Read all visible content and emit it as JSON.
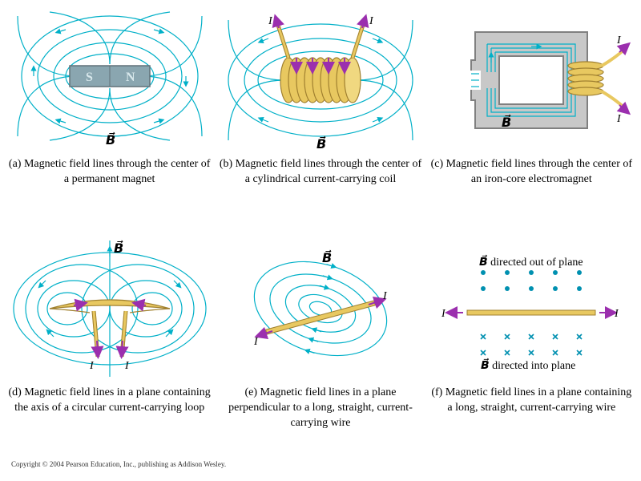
{
  "colors": {
    "field_line": "#00b0c8",
    "field_arrow": "#00b0c8",
    "current_arrow": "#9b2fae",
    "wire_fill": "#e8c860",
    "wire_stroke": "#a08030",
    "magnet_fill": "#8aa6b0",
    "magnet_face": "#b0c8d0",
    "iron_fill": "#c8c8c8",
    "iron_stroke": "#808080",
    "dot_cross": "#0090b0",
    "text": "#000000"
  },
  "fonts": {
    "caption_size": 14,
    "label_size": 14,
    "copyright_size": 9
  },
  "stroke": {
    "field_line_width": 1.2,
    "wire_stroke_width": 1.2,
    "current_arrow_width": 2
  },
  "labels": {
    "B": "B",
    "I": "I",
    "B_out": "directed out of plane",
    "B_in": "directed into plane",
    "S": "S",
    "N": "N"
  },
  "captions": {
    "a": "(a) Magnetic field lines through the center of a permanent magnet",
    "b": "(b) Magnetic field lines through the center of a cylindrical current-carrying coil",
    "c": "(c) Magnetic field lines through the center of an iron-core electromagnet",
    "d": "(d) Magnetic field lines in a plane containing the axis of a circular current-carrying loop",
    "e": "(e) Magnetic field lines in a plane perpendicular to a long, straight, current-carrying wire",
    "f": "(f) Magnetic field lines in a plane containing a long, straight, current-carrying wire"
  },
  "panel_f": {
    "dots": [
      [
        -60,
        -30
      ],
      [
        -30,
        -30
      ],
      [
        0,
        -30
      ],
      [
        30,
        -30
      ],
      [
        60,
        -30
      ],
      [
        -60,
        -50
      ],
      [
        -30,
        -50
      ],
      [
        0,
        -50
      ],
      [
        30,
        -50
      ],
      [
        60,
        -50
      ]
    ],
    "crosses": [
      [
        -60,
        30
      ],
      [
        -30,
        30
      ],
      [
        0,
        30
      ],
      [
        30,
        30
      ],
      [
        60,
        30
      ],
      [
        -60,
        50
      ],
      [
        -30,
        50
      ],
      [
        0,
        50
      ],
      [
        30,
        50
      ],
      [
        60,
        50
      ]
    ],
    "dot_radius": 3,
    "cross_size": 6
  },
  "copyright": "Copyright © 2004 Pearson Education, Inc., publishing as Addison Wesley."
}
